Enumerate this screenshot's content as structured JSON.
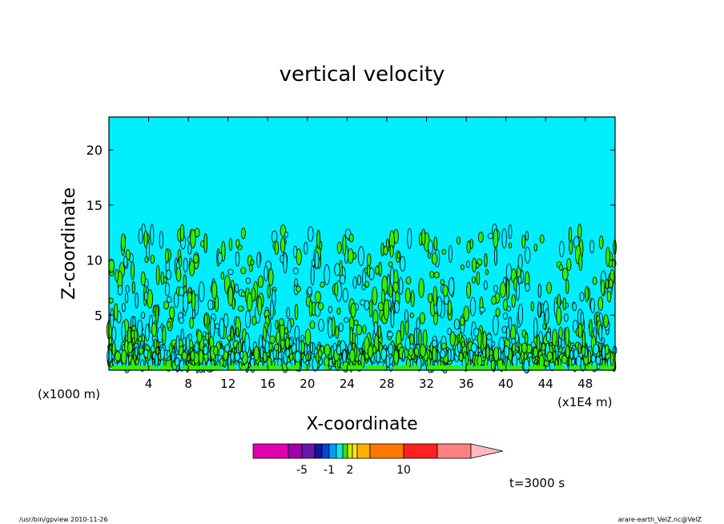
{
  "chart_data": {
    "type": "heatmap",
    "title": "vertical velocity",
    "xlabel": "X-coordinate",
    "ylabel": "Z-coordinate",
    "x_unit": "(x1E4 m)",
    "y_unit": "(x1000 m)",
    "xlim": [
      0,
      51
    ],
    "ylim": [
      0,
      23
    ],
    "x_ticks": [
      "4",
      "8",
      "12",
      "16",
      "20",
      "24",
      "28",
      "32",
      "36",
      "40",
      "44",
      "48"
    ],
    "y_ticks": [
      "5",
      "10",
      "15",
      "20"
    ],
    "time_label": "t=3000 s",
    "colorbar": {
      "tick_labels": [
        "-5",
        "-1",
        "2",
        "10"
      ],
      "colors": [
        "#e000b0",
        "#a000a8",
        "#6818a8",
        "#1414a0",
        "#0044e0",
        "#00a0f0",
        "#00f0f0",
        "#40e000",
        "#c8f000",
        "#ffe800",
        "#ffb000",
        "#ff7800",
        "#ff2020",
        "#ff8080",
        "#ffb8c0"
      ]
    },
    "background_color": "#00eeff",
    "positive_color": "#33ee00",
    "contour_color": "#000000"
  },
  "footer": {
    "left": "/usr/bin/gpview   2010-11-26",
    "right": "arare-earth_VelZ.nc@VelZ"
  }
}
